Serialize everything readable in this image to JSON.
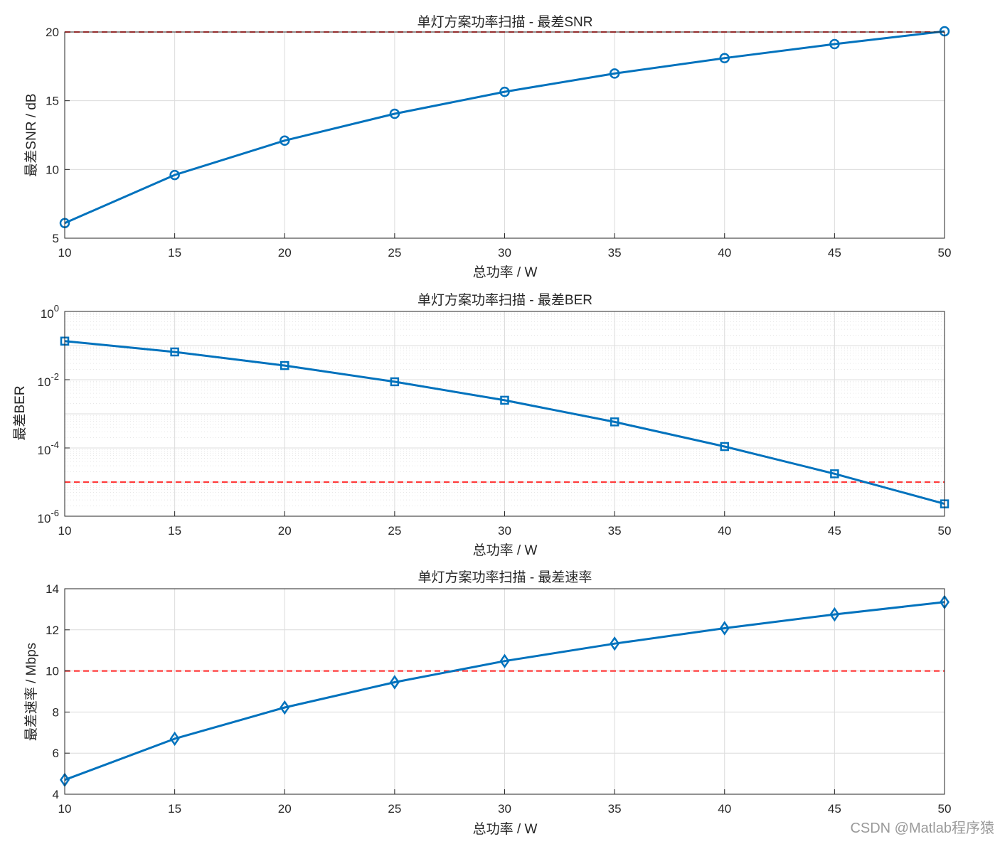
{
  "watermark": "CSDN @Matlab程序猿",
  "colors": {
    "series": "#0072BD",
    "threshold": "#FF3B3B",
    "grid": "#DCDCDC",
    "axis": "#262626"
  },
  "chart_data": [
    {
      "type": "line",
      "title": "单灯方案功率扫描 - 最差SNR",
      "xlabel": "总功率 / W",
      "ylabel": "最差SNR / dB",
      "x": [
        10,
        15,
        20,
        25,
        30,
        35,
        40,
        45,
        50
      ],
      "series": [
        {
          "values": [
            6.1,
            9.6,
            12.1,
            14.05,
            15.65,
            16.98,
            18.1,
            19.12,
            20.05
          ],
          "marker": "circle"
        }
      ],
      "threshold": 20,
      "xlim": [
        10,
        50
      ],
      "ylim": [
        5,
        20
      ],
      "yscale": "linear",
      "xticks": [
        "10",
        "15",
        "20",
        "25",
        "30",
        "35",
        "40",
        "45",
        "50"
      ],
      "yticks": [
        "5",
        "10",
        "15",
        "20"
      ],
      "grid": true
    },
    {
      "type": "line",
      "title": "单灯方案功率扫描 - 最差BER",
      "xlabel": "总功率 / W",
      "ylabel": "最差BER",
      "x": [
        10,
        15,
        20,
        25,
        30,
        35,
        40,
        45,
        50
      ],
      "series": [
        {
          "values": [
            0.135,
            0.065,
            0.026,
            0.0087,
            0.0025,
            0.00058,
            0.00011,
            1.75e-05,
            2.3e-06
          ],
          "marker": "square"
        }
      ],
      "threshold": 1e-05,
      "xlim": [
        10,
        50
      ],
      "ylim": [
        1e-06,
        1
      ],
      "yscale": "log",
      "xticks": [
        "10",
        "15",
        "20",
        "25",
        "30",
        "35",
        "40",
        "45",
        "50"
      ],
      "yticks": [
        {
          "base": "10",
          "exp": "-6"
        },
        {
          "base": "10",
          "exp": "-4"
        },
        {
          "base": "10",
          "exp": "-2"
        },
        {
          "base": "10",
          "exp": "0"
        }
      ],
      "grid": true
    },
    {
      "type": "line",
      "title": "单灯方案功率扫描 - 最差速率",
      "xlabel": "总功率 / W",
      "ylabel": "最差速率 / Mbps",
      "x": [
        10,
        15,
        20,
        25,
        30,
        35,
        40,
        45,
        50
      ],
      "series": [
        {
          "values": [
            4.7,
            6.7,
            8.22,
            9.45,
            10.48,
            11.33,
            12.08,
            12.75,
            13.35
          ],
          "marker": "diamond"
        }
      ],
      "threshold": 10,
      "xlim": [
        10,
        50
      ],
      "ylim": [
        4,
        14
      ],
      "yscale": "linear",
      "xticks": [
        "10",
        "15",
        "20",
        "25",
        "30",
        "35",
        "40",
        "45",
        "50"
      ],
      "yticks": [
        "4",
        "6",
        "8",
        "10",
        "12",
        "14"
      ],
      "grid": true
    }
  ]
}
